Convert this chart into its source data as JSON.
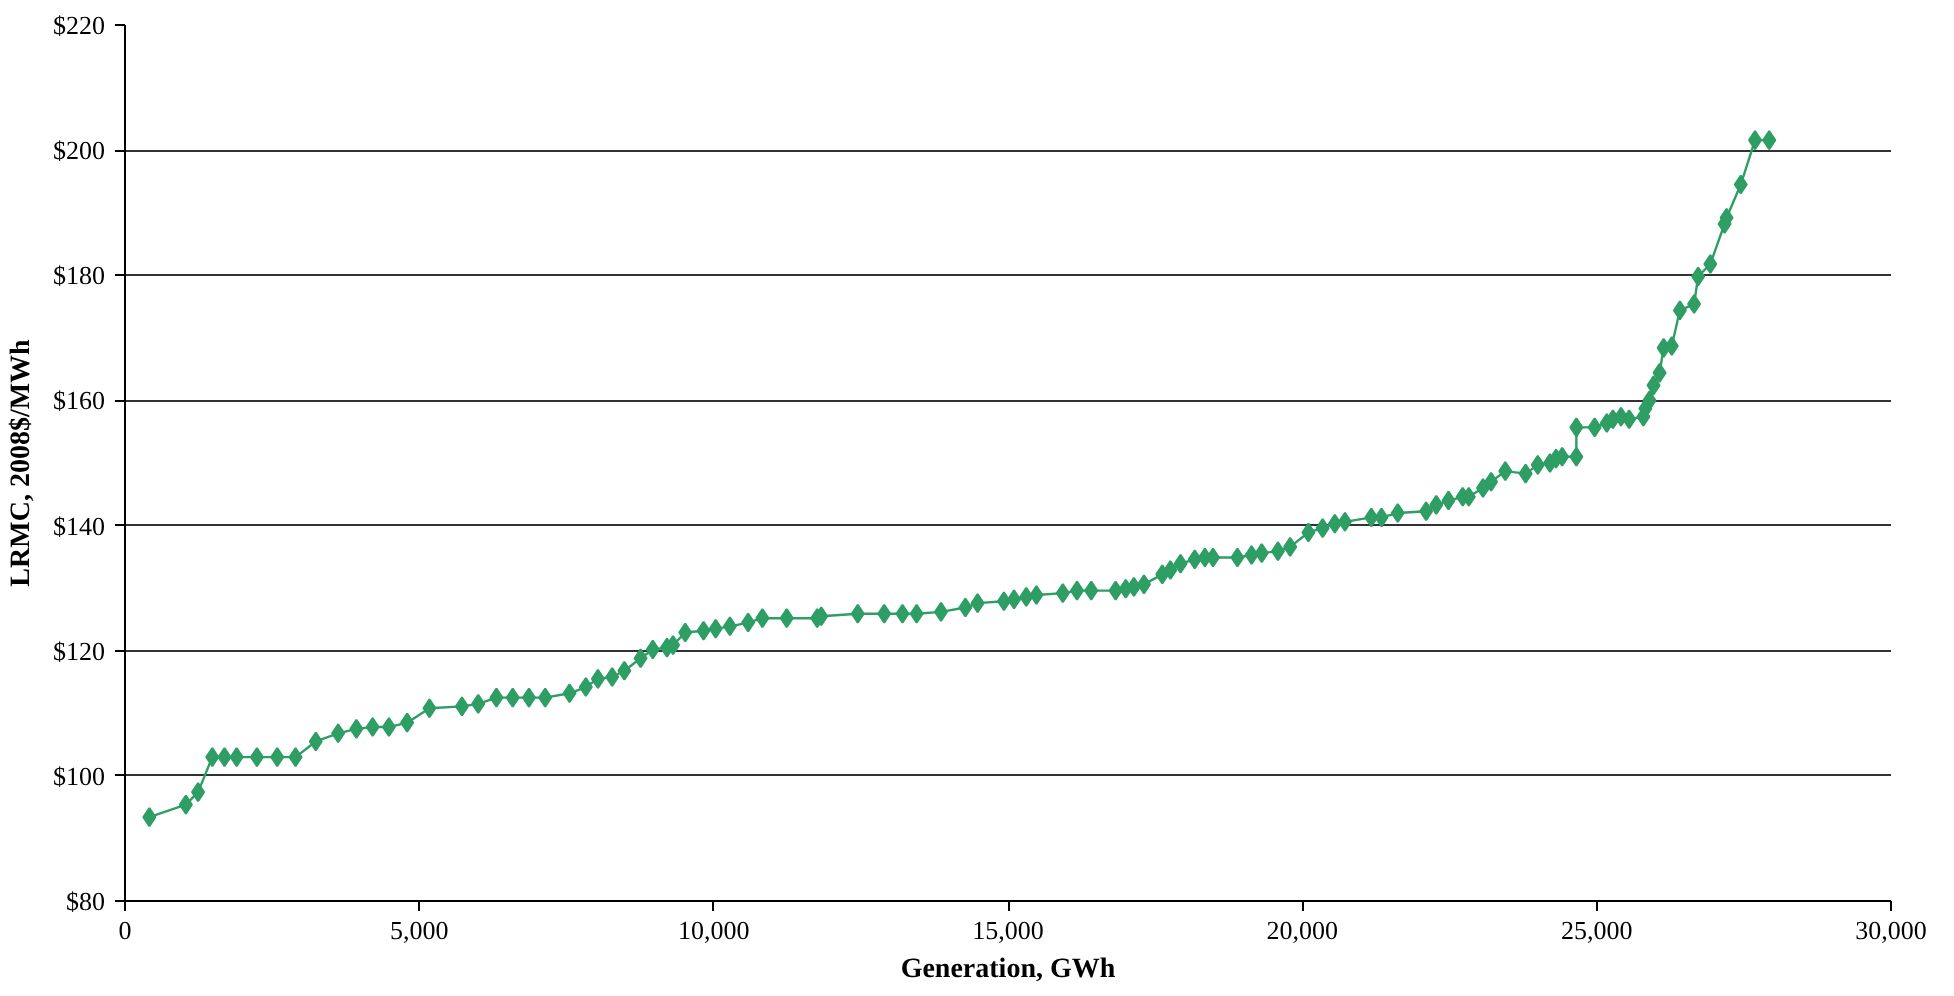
{
  "chart_data": {
    "type": "line",
    "xlabel": "Generation, GWh",
    "ylabel": "LRMC, 2008$/MWh",
    "xlim": [
      0,
      30000
    ],
    "ylim": [
      80,
      220
    ],
    "xticks": [
      {
        "value": 0,
        "label": "0"
      },
      {
        "value": 5000,
        "label": "5,000"
      },
      {
        "value": 10000,
        "label": "10,000"
      },
      {
        "value": 15000,
        "label": "15,000"
      },
      {
        "value": 20000,
        "label": "20,000"
      },
      {
        "value": 25000,
        "label": "25,000"
      },
      {
        "value": 30000,
        "label": "30,000"
      }
    ],
    "yticks": [
      {
        "value": 80,
        "label": "$80"
      },
      {
        "value": 100,
        "label": "$100"
      },
      {
        "value": 120,
        "label": "$120"
      },
      {
        "value": 140,
        "label": "$140"
      },
      {
        "value": 160,
        "label": "$160"
      },
      {
        "value": 180,
        "label": "$180"
      },
      {
        "value": 200,
        "label": "$200"
      },
      {
        "value": 220,
        "label": "$220"
      }
    ],
    "grid": "y",
    "marker": "diamond",
    "line_style": "solid",
    "series": [
      {
        "color": "#2e9e64",
        "x": [
          414,
          1034,
          1241,
          1483,
          1690,
          1897,
          2241,
          2586,
          2897,
          3241,
          3621,
          3931,
          4207,
          4483,
          4793,
          5172,
          5724,
          6000,
          6310,
          6586,
          6862,
          7138,
          7552,
          7828,
          8034,
          8276,
          8483,
          8759,
          8966,
          9207,
          9310,
          9517,
          9828,
          10034,
          10276,
          10586,
          10828,
          11241,
          11759,
          11828,
          12448,
          12897,
          13207,
          13448,
          13862,
          14276,
          14483,
          14931,
          15103,
          15310,
          15483,
          15931,
          16172,
          16414,
          16828,
          17000,
          17138,
          17310,
          17621,
          17759,
          17931,
          18172,
          18345,
          18483,
          18897,
          19138,
          19310,
          19586,
          19793,
          20103,
          20345,
          20552,
          20724,
          21172,
          21345,
          21621,
          22103,
          22276,
          22483,
          22724,
          22828,
          23069,
          23207,
          23448,
          23793,
          24000,
          24207,
          24310,
          24414,
          24655,
          24655,
          24966,
          25172,
          25276,
          25414,
          25552,
          25793,
          25828,
          25897,
          25966,
          26069,
          26138,
          26276,
          26414,
          26655,
          26724,
          26931,
          27172,
          27207,
          27448,
          27690,
          27931
        ],
        "values": [
          93.4,
          95.4,
          97.4,
          103,
          103,
          103,
          103,
          103,
          103,
          105.5,
          106.8,
          107.5,
          107.8,
          107.8,
          108.5,
          110.8,
          111.1,
          111.5,
          112.5,
          112.5,
          112.5,
          112.5,
          113.2,
          114.2,
          115.5,
          115.8,
          116.8,
          118.8,
          120.2,
          120.5,
          120.9,
          122.9,
          123.2,
          123.5,
          123.9,
          124.5,
          125.2,
          125.2,
          125.2,
          125.5,
          125.9,
          125.9,
          125.9,
          125.9,
          126.2,
          126.9,
          127.6,
          127.9,
          128.2,
          128.6,
          128.9,
          129.2,
          129.6,
          129.6,
          129.6,
          129.9,
          130.2,
          130.6,
          132.2,
          132.9,
          133.9,
          134.6,
          134.9,
          134.9,
          134.9,
          135.3,
          135.6,
          135.9,
          136.6,
          138.9,
          139.6,
          140.3,
          140.6,
          141.3,
          141.3,
          142,
          142.3,
          143.3,
          144,
          144.6,
          144.6,
          146,
          147,
          148.7,
          148.3,
          149.7,
          150,
          150.7,
          151,
          151,
          155.7,
          155.7,
          156.4,
          157,
          157.4,
          157,
          157.4,
          158.7,
          160,
          162.4,
          164.4,
          168.4,
          168.7,
          174.4,
          175.4,
          179.8,
          181.8,
          188.2,
          189.2,
          194.5,
          201.6,
          201.6
        ]
      }
    ]
  }
}
